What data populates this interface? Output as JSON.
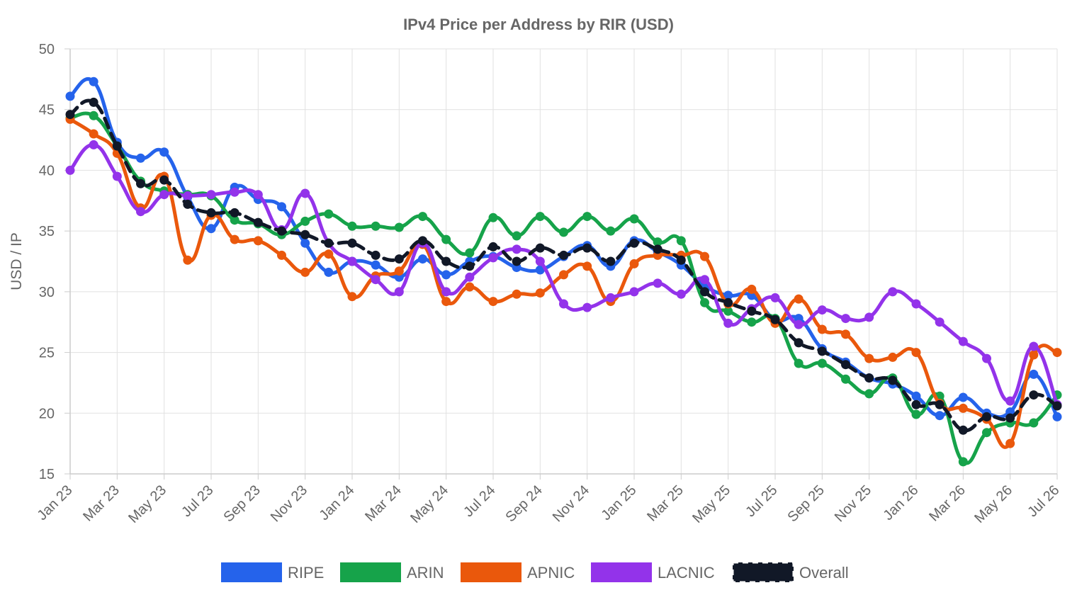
{
  "chart_data": {
    "type": "line",
    "title": "IPv4 Price per Address by RIR (USD)",
    "xlabel": "",
    "ylabel": "USD / IP",
    "ylim": [
      15,
      50
    ],
    "yticks": [
      15,
      20,
      25,
      30,
      35,
      40,
      45,
      50
    ],
    "grid": true,
    "legend_position": "bottom",
    "x": [
      "Jan 23",
      "Feb 23",
      "Mar 23",
      "Apr 23",
      "May 23",
      "Jun 23",
      "Jul 23",
      "Aug 23",
      "Sep 23",
      "Oct 23",
      "Nov 23",
      "Dec 23",
      "Jan 24",
      "Feb 24",
      "Mar 24",
      "Apr 24",
      "May 24",
      "Jun 24",
      "Jul 24",
      "Aug 24",
      "Sep 24",
      "Oct 24",
      "Nov 24",
      "Dec 24",
      "Jan 25",
      "Feb 25",
      "Mar 25",
      "Apr 25",
      "May 25",
      "Jun 25",
      "Jul 25",
      "Aug 25",
      "Sep 25",
      "Oct 25",
      "Nov 25",
      "Dec 25",
      "Jan 26",
      "Feb 26",
      "Mar 26",
      "Apr 26",
      "May 26",
      "Jun 26",
      "Jul 26"
    ],
    "x_tick_labels": [
      "Jan 23",
      "Mar 23",
      "May 23",
      "Jul 23",
      "Sep 23",
      "Nov 23",
      "Jan 24",
      "Mar 24",
      "May 24",
      "Jul 24",
      "Sep 24",
      "Nov 24",
      "Jan 25",
      "Mar 25",
      "May 25",
      "Jul 25",
      "Sep 25",
      "Nov 25",
      "Jan 26",
      "Mar 26",
      "May 26",
      "Jul 26"
    ],
    "series": [
      {
        "name": "RIPE",
        "color": "#2563eb",
        "dashed": false,
        "values": [
          46.1,
          47.3,
          42.3,
          41.0,
          41.5,
          37.8,
          35.2,
          38.6,
          37.6,
          37.0,
          34.0,
          31.6,
          32.5,
          32.2,
          31.2,
          32.7,
          31.4,
          32.5,
          32.9,
          32.0,
          31.8,
          32.9,
          33.8,
          32.1,
          34.2,
          33.3,
          32.2,
          30.5,
          29.7,
          29.7,
          27.7,
          27.8,
          25.3,
          24.2,
          22.9,
          22.4,
          21.4,
          19.8,
          21.3,
          20.0,
          20.1,
          23.2,
          19.7
        ]
      },
      {
        "name": "ARIN",
        "color": "#16a34a",
        "dashed": false,
        "values": [
          44.3,
          44.5,
          42.0,
          39.1,
          38.3,
          38.0,
          37.9,
          35.9,
          35.6,
          34.7,
          35.8,
          36.4,
          35.4,
          35.4,
          35.3,
          36.2,
          34.3,
          33.2,
          36.1,
          34.6,
          36.2,
          34.9,
          36.2,
          35.0,
          36.0,
          34.1,
          34.2,
          29.1,
          28.4,
          27.5,
          27.8,
          24.1,
          24.1,
          22.8,
          21.6,
          22.9,
          19.9,
          21.4,
          16.0,
          18.4,
          19.2,
          19.2,
          21.5
        ]
      },
      {
        "name": "APNIC",
        "color": "#ea580c",
        "dashed": false,
        "values": [
          44.2,
          43.0,
          41.4,
          36.9,
          39.5,
          32.6,
          36.3,
          34.3,
          34.2,
          33.0,
          31.6,
          33.1,
          29.6,
          31.3,
          31.7,
          33.9,
          29.2,
          30.4,
          29.2,
          29.8,
          29.9,
          31.4,
          32.1,
          29.2,
          32.3,
          33.0,
          33.0,
          32.9,
          29.0,
          30.2,
          27.4,
          29.4,
          26.9,
          26.5,
          24.5,
          24.6,
          25.0,
          20.8,
          20.4,
          19.5,
          17.5,
          24.8,
          25.0
        ]
      },
      {
        "name": "LACNIC",
        "color": "#9333ea",
        "dashed": false,
        "values": [
          40.0,
          42.1,
          39.5,
          36.6,
          38.0,
          37.9,
          38.0,
          38.2,
          38.0,
          35.1,
          38.1,
          34.0,
          32.5,
          31.0,
          30.0,
          34.0,
          30.0,
          31.2,
          32.8,
          33.5,
          32.5,
          29.0,
          28.7,
          29.5,
          30.0,
          30.7,
          29.8,
          31.0,
          27.4,
          28.6,
          29.5,
          27.3,
          28.5,
          27.8,
          27.9,
          30.0,
          29.0,
          27.5,
          25.9,
          24.5,
          21.0,
          25.5,
          20.7
        ]
      },
      {
        "name": "Overall",
        "color": "#111827",
        "dashed": true,
        "values": [
          44.6,
          45.6,
          42.0,
          38.9,
          39.2,
          37.2,
          36.5,
          36.5,
          35.7,
          35.0,
          34.7,
          34.0,
          34.0,
          33.0,
          32.7,
          34.2,
          32.5,
          32.1,
          33.7,
          32.5,
          33.6,
          33.0,
          33.6,
          32.5,
          34.0,
          33.5,
          32.6,
          30.0,
          29.1,
          28.4,
          27.7,
          25.8,
          25.1,
          24.0,
          22.9,
          22.7,
          20.7,
          20.7,
          18.6,
          19.7,
          19.6,
          21.5,
          20.6
        ]
      }
    ]
  }
}
